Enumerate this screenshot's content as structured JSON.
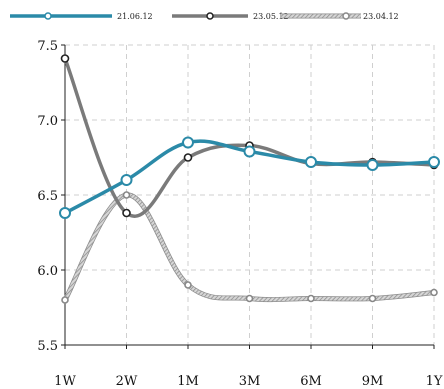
{
  "chart_data": {
    "type": "line",
    "title": "",
    "xlabel": "",
    "ylabel": "",
    "categories": [
      "1W",
      "2W",
      "1M",
      "3M",
      "6M",
      "9M",
      "1Y"
    ],
    "y_ticks": [
      "5.5",
      "6.0",
      "6.5",
      "7.0",
      "7.5"
    ],
    "ylim": [
      5.5,
      7.5
    ],
    "grid": true,
    "legend_position": "top",
    "series": [
      {
        "name": "21.06.12",
        "color": "#2b8aa8",
        "style": "solid",
        "values": [
          6.38,
          6.6,
          6.85,
          6.79,
          6.72,
          6.7,
          6.72
        ]
      },
      {
        "name": "23.05.12",
        "color": "#7a7a7a",
        "style": "solid",
        "values": [
          7.41,
          6.38,
          6.75,
          6.83,
          6.71,
          6.72,
          6.7
        ]
      },
      {
        "name": "23.04.12",
        "color": "#a8a8a8",
        "style": "hatched",
        "values": [
          5.8,
          6.5,
          5.9,
          5.81,
          5.81,
          5.81,
          5.85
        ]
      }
    ]
  }
}
